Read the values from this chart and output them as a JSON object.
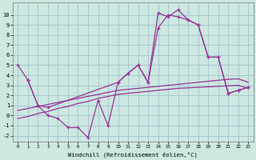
{
  "xlabel": "Windchill (Refroidissement éolien,°C)",
  "bg_color": "#cce8e0",
  "line_color": "#993399",
  "grid_color": "#99bbcc",
  "line_zigzag_x": [
    0,
    1,
    2,
    3,
    4,
    5,
    6,
    7,
    8,
    9,
    10,
    11,
    12,
    13,
    14,
    15,
    16,
    17,
    18,
    19,
    20,
    21,
    22,
    23
  ],
  "line_zigzag_y": [
    5.0,
    3.5,
    1.0,
    0.0,
    -0.3,
    -1.2,
    -1.2,
    -2.2,
    1.5,
    -1.0,
    3.3,
    4.2,
    5.0,
    3.3,
    10.2,
    9.8,
    10.5,
    9.5,
    9.0,
    5.8,
    5.8,
    2.2,
    2.5,
    2.8
  ],
  "line_upper_x": [
    1,
    2,
    3,
    10,
    11,
    12,
    13,
    14,
    15,
    16,
    17,
    18,
    19,
    20,
    21,
    22,
    23
  ],
  "line_upper_y": [
    3.5,
    1.0,
    0.8,
    3.3,
    4.2,
    5.0,
    3.3,
    8.7,
    10.0,
    9.8,
    9.5,
    9.0,
    5.8,
    5.8,
    2.2,
    2.5,
    2.8
  ],
  "line_diag1_x": [
    0,
    1,
    2,
    3,
    4,
    5,
    6,
    7,
    8,
    9,
    10,
    11,
    12,
    13,
    14,
    15,
    16,
    17,
    18,
    19,
    20,
    21,
    22,
    23
  ],
  "line_diag1_y": [
    0.5,
    0.7,
    0.9,
    1.1,
    1.3,
    1.5,
    1.7,
    1.9,
    2.1,
    2.3,
    2.5,
    2.6,
    2.7,
    2.8,
    2.9,
    3.0,
    3.1,
    3.2,
    3.3,
    3.4,
    3.5,
    3.6,
    3.65,
    3.3
  ],
  "line_diag2_x": [
    0,
    1,
    2,
    3,
    4,
    5,
    6,
    7,
    8,
    9,
    10,
    11,
    12,
    13,
    14,
    15,
    16,
    17,
    18,
    19,
    20,
    21,
    22,
    23
  ],
  "line_diag2_y": [
    -0.3,
    -0.1,
    0.2,
    0.4,
    0.7,
    0.9,
    1.2,
    1.4,
    1.7,
    1.9,
    2.1,
    2.2,
    2.3,
    2.4,
    2.5,
    2.6,
    2.7,
    2.75,
    2.8,
    2.85,
    2.9,
    2.95,
    3.0,
    2.7
  ],
  "ylim": [
    -2.6,
    11.2
  ],
  "xlim": [
    -0.5,
    23.5
  ],
  "yticks": [
    -2,
    -1,
    0,
    1,
    2,
    3,
    4,
    5,
    6,
    7,
    8,
    9,
    10
  ],
  "xticks": [
    0,
    1,
    2,
    3,
    4,
    5,
    6,
    7,
    8,
    9,
    10,
    11,
    12,
    13,
    14,
    15,
    16,
    17,
    18,
    19,
    20,
    21,
    22,
    23
  ]
}
